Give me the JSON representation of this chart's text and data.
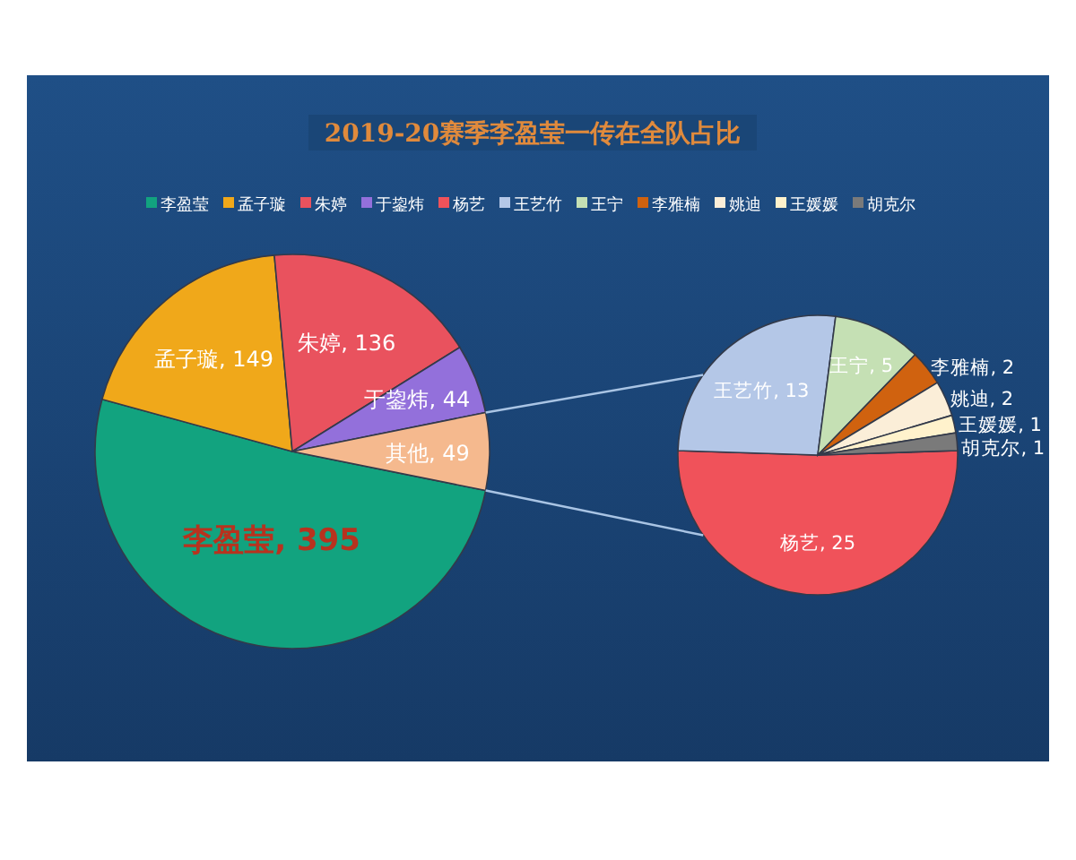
{
  "chart_data": [
    {
      "type": "pie",
      "title": "2019-20赛季李盈莹一传在全队占比",
      "legend": "top",
      "categories": [
        "李盈莹",
        "孟子璇",
        "朱婷",
        "于鋆炜",
        null
      ],
      "values": [
        395,
        149,
        136,
        44,
        49
      ],
      "value_labels": [
        "李盈莹, 395",
        "孟子璇, 149",
        "朱婷, 136",
        "于鋆炜, 44",
        "其他, 49"
      ],
      "colors": [
        "#12a37f",
        "#f0a81a",
        "#e9525e",
        "#9370db",
        "#f5b98e"
      ]
    },
    {
      "type": "pie",
      "legend": "top",
      "categories": [
        "杨艺",
        "王艺竹",
        "王宁",
        "李雅楠",
        "姚迪",
        "王媛媛",
        "胡克尔"
      ],
      "values": [
        25,
        13,
        5,
        2,
        2,
        1,
        1
      ],
      "value_labels": [
        "杨艺, 25",
        "王艺竹, 13",
        "王宁, 5",
        "李雅楠, 2",
        "姚迪, 2",
        "王媛媛, 1",
        "胡克尔, 1"
      ],
      "colors": [
        "#f0525a",
        "#b4c7e7",
        "#c5e0b4",
        "#d0620f",
        "#fbeed8",
        "#fff2cc",
        "#7a7a7a"
      ]
    }
  ]
}
